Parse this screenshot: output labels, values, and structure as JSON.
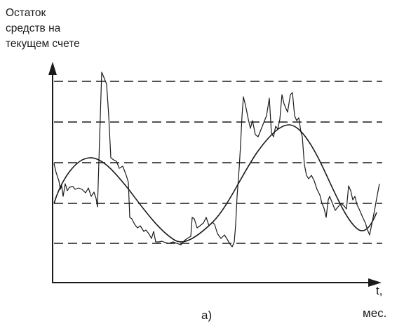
{
  "y_axis_label": [
    "Остаток",
    "средств на",
    "текущем счете"
  ],
  "x_axis_label": "t,",
  "x_axis_unit": "мес.",
  "caption": "а)",
  "line_color": "#1a1a1a"
}
